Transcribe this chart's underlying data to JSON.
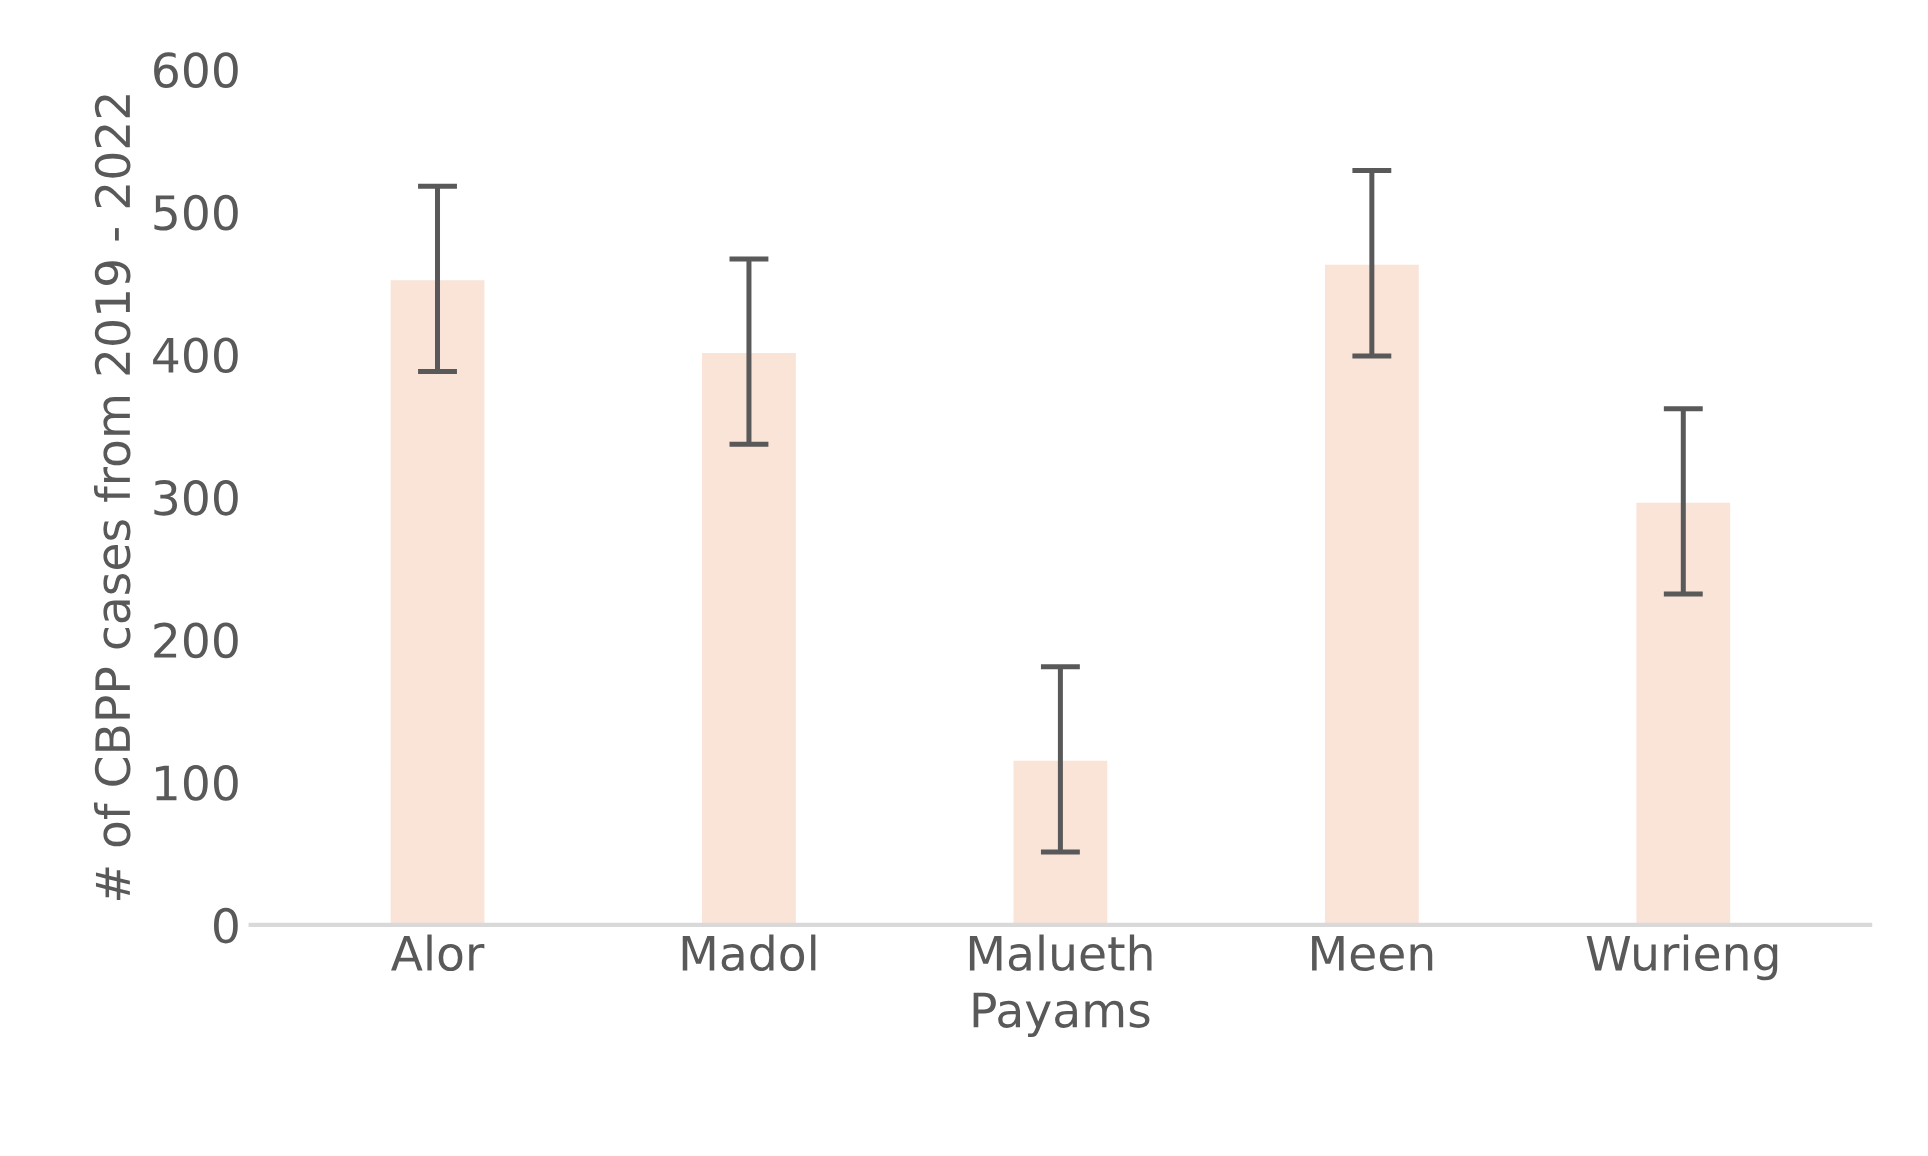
{
  "chart_data": {
    "type": "bar",
    "xlabel": "Payams",
    "ylabel": "# of CBPP cases from 2019 - 2022",
    "categories": [
      "Alor",
      "Madol",
      "Malueth",
      "Meen",
      "Wurieng"
    ],
    "values": [
      453,
      402,
      116,
      464,
      297
    ],
    "errors": [
      65,
      65,
      65,
      65,
      65
    ],
    "color": "#fae3d7",
    "ylim": [
      0,
      600
    ],
    "yticks": [
      0,
      100,
      200,
      300,
      400,
      500,
      600
    ],
    "grid": false
  }
}
